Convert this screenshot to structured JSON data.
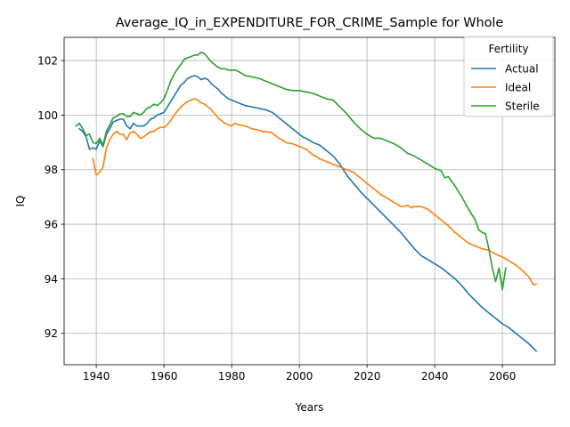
{
  "chart_data": {
    "type": "line",
    "title": "Average_IQ_in_EXPENDITURE_FOR_CRIME_Sample for Whole",
    "xlabel": "Years",
    "ylabel": "IQ",
    "xlim": [
      1930.5,
      2075.5
    ],
    "ylim": [
      90.85,
      102.85
    ],
    "xticks": [
      1940,
      1960,
      1980,
      2000,
      2020,
      2040,
      2060
    ],
    "yticks": [
      92,
      94,
      96,
      98,
      100,
      102
    ],
    "grid": true,
    "legend": {
      "title": "Fertility",
      "position": "top-right"
    },
    "series": [
      {
        "name": "Actual",
        "color": "#1f77b4",
        "points": [
          [
            1935,
            99.5
          ],
          [
            1936,
            99.4
          ],
          [
            1937,
            99.2
          ],
          [
            1938,
            98.75
          ],
          [
            1939,
            98.8
          ],
          [
            1940,
            98.75
          ],
          [
            1941,
            99.05
          ],
          [
            1942,
            98.85
          ],
          [
            1943,
            99.3
          ],
          [
            1944,
            99.5
          ],
          [
            1945,
            99.75
          ],
          [
            1946,
            99.8
          ],
          [
            1947,
            99.85
          ],
          [
            1948,
            99.85
          ],
          [
            1949,
            99.6
          ],
          [
            1950,
            99.5
          ],
          [
            1951,
            99.7
          ],
          [
            1952,
            99.6
          ],
          [
            1953,
            99.6
          ],
          [
            1954,
            99.6
          ],
          [
            1955,
            99.7
          ],
          [
            1956,
            99.85
          ],
          [
            1957,
            99.9
          ],
          [
            1958,
            100.0
          ],
          [
            1959,
            100.05
          ],
          [
            1960,
            100.1
          ],
          [
            1961,
            100.3
          ],
          [
            1962,
            100.5
          ],
          [
            1963,
            100.7
          ],
          [
            1964,
            100.9
          ],
          [
            1965,
            101.1
          ],
          [
            1966,
            101.2
          ],
          [
            1967,
            101.35
          ],
          [
            1968,
            101.4
          ],
          [
            1969,
            101.45
          ],
          [
            1970,
            101.4
          ],
          [
            1971,
            101.3
          ],
          [
            1972,
            101.35
          ],
          [
            1973,
            101.3
          ],
          [
            1974,
            101.15
          ],
          [
            1975,
            101.05
          ],
          [
            1976,
            100.95
          ],
          [
            1977,
            100.8
          ],
          [
            1978,
            100.7
          ],
          [
            1979,
            100.6
          ],
          [
            1980,
            100.55
          ],
          [
            1981,
            100.5
          ],
          [
            1982,
            100.45
          ],
          [
            1984,
            100.35
          ],
          [
            1986,
            100.3
          ],
          [
            1988,
            100.25
          ],
          [
            1990,
            100.2
          ],
          [
            1992,
            100.1
          ],
          [
            1994,
            99.9
          ],
          [
            1996,
            99.7
          ],
          [
            1998,
            99.5
          ],
          [
            2000,
            99.3
          ],
          [
            2001,
            99.2
          ],
          [
            2002,
            99.15
          ],
          [
            2004,
            99.0
          ],
          [
            2006,
            98.9
          ],
          [
            2008,
            98.7
          ],
          [
            2010,
            98.5
          ],
          [
            2012,
            98.2
          ],
          [
            2014,
            97.8
          ],
          [
            2016,
            97.5
          ],
          [
            2018,
            97.2
          ],
          [
            2020,
            96.95
          ],
          [
            2022,
            96.7
          ],
          [
            2024,
            96.45
          ],
          [
            2026,
            96.2
          ],
          [
            2028,
            95.95
          ],
          [
            2030,
            95.7
          ],
          [
            2032,
            95.4
          ],
          [
            2034,
            95.1
          ],
          [
            2036,
            94.85
          ],
          [
            2038,
            94.7
          ],
          [
            2040,
            94.55
          ],
          [
            2042,
            94.4
          ],
          [
            2044,
            94.2
          ],
          [
            2046,
            94.0
          ],
          [
            2048,
            93.75
          ],
          [
            2050,
            93.45
          ],
          [
            2052,
            93.2
          ],
          [
            2054,
            92.95
          ],
          [
            2056,
            92.75
          ],
          [
            2058,
            92.55
          ],
          [
            2060,
            92.35
          ],
          [
            2062,
            92.2
          ],
          [
            2064,
            92.0
          ],
          [
            2066,
            91.8
          ],
          [
            2068,
            91.6
          ],
          [
            2070,
            91.35
          ]
        ]
      },
      {
        "name": "Ideal",
        "color": "#ff7f0e",
        "points": [
          [
            1939,
            98.4
          ],
          [
            1940,
            97.8
          ],
          [
            1941,
            97.9
          ],
          [
            1942,
            98.1
          ],
          [
            1943,
            98.8
          ],
          [
            1944,
            99.1
          ],
          [
            1945,
            99.3
          ],
          [
            1946,
            99.4
          ],
          [
            1947,
            99.3
          ],
          [
            1948,
            99.3
          ],
          [
            1949,
            99.1
          ],
          [
            1950,
            99.35
          ],
          [
            1951,
            99.4
          ],
          [
            1952,
            99.3
          ],
          [
            1953,
            99.15
          ],
          [
            1954,
            99.2
          ],
          [
            1955,
            99.3
          ],
          [
            1956,
            99.4
          ],
          [
            1957,
            99.4
          ],
          [
            1958,
            99.5
          ],
          [
            1959,
            99.55
          ],
          [
            1960,
            99.55
          ],
          [
            1961,
            99.65
          ],
          [
            1962,
            99.8
          ],
          [
            1963,
            100.0
          ],
          [
            1964,
            100.15
          ],
          [
            1965,
            100.3
          ],
          [
            1966,
            100.4
          ],
          [
            1967,
            100.5
          ],
          [
            1968,
            100.55
          ],
          [
            1969,
            100.6
          ],
          [
            1970,
            100.55
          ],
          [
            1971,
            100.45
          ],
          [
            1972,
            100.4
          ],
          [
            1973,
            100.3
          ],
          [
            1974,
            100.2
          ],
          [
            1975,
            100.05
          ],
          [
            1976,
            99.9
          ],
          [
            1977,
            99.8
          ],
          [
            1978,
            99.7
          ],
          [
            1979,
            99.65
          ],
          [
            1980,
            99.6
          ],
          [
            1981,
            99.7
          ],
          [
            1982,
            99.65
          ],
          [
            1984,
            99.6
          ],
          [
            1986,
            99.5
          ],
          [
            1988,
            99.45
          ],
          [
            1989,
            99.4
          ],
          [
            1990,
            99.4
          ],
          [
            1992,
            99.35
          ],
          [
            1994,
            99.15
          ],
          [
            1996,
            99.0
          ],
          [
            1998,
            98.95
          ],
          [
            2000,
            98.85
          ],
          [
            2002,
            98.75
          ],
          [
            2004,
            98.55
          ],
          [
            2006,
            98.4
          ],
          [
            2008,
            98.3
          ],
          [
            2010,
            98.2
          ],
          [
            2012,
            98.1
          ],
          [
            2014,
            98.0
          ],
          [
            2016,
            97.9
          ],
          [
            2018,
            97.7
          ],
          [
            2020,
            97.5
          ],
          [
            2022,
            97.3
          ],
          [
            2024,
            97.1
          ],
          [
            2026,
            96.95
          ],
          [
            2028,
            96.8
          ],
          [
            2030,
            96.65
          ],
          [
            2031,
            96.65
          ],
          [
            2032,
            96.7
          ],
          [
            2033,
            96.6
          ],
          [
            2034,
            96.65
          ],
          [
            2036,
            96.65
          ],
          [
            2038,
            96.55
          ],
          [
            2040,
            96.35
          ],
          [
            2042,
            96.15
          ],
          [
            2044,
            95.95
          ],
          [
            2046,
            95.7
          ],
          [
            2048,
            95.5
          ],
          [
            2050,
            95.3
          ],
          [
            2052,
            95.2
          ],
          [
            2054,
            95.1
          ],
          [
            2056,
            95.05
          ],
          [
            2058,
            94.9
          ],
          [
            2060,
            94.8
          ],
          [
            2062,
            94.65
          ],
          [
            2064,
            94.5
          ],
          [
            2066,
            94.3
          ],
          [
            2068,
            94.05
          ],
          [
            2069,
            93.8
          ],
          [
            2070,
            93.8
          ]
        ]
      },
      {
        "name": "Sterile",
        "color": "#2ca02c",
        "points": [
          [
            1934,
            99.6
          ],
          [
            1935,
            99.7
          ],
          [
            1936,
            99.5
          ],
          [
            1937,
            99.25
          ],
          [
            1938,
            99.3
          ],
          [
            1939,
            99.0
          ],
          [
            1940,
            98.95
          ],
          [
            1941,
            99.15
          ],
          [
            1942,
            98.9
          ],
          [
            1943,
            99.4
          ],
          [
            1944,
            99.65
          ],
          [
            1945,
            99.9
          ],
          [
            1946,
            99.95
          ],
          [
            1947,
            100.05
          ],
          [
            1948,
            100.05
          ],
          [
            1949,
            99.95
          ],
          [
            1950,
            99.95
          ],
          [
            1951,
            100.1
          ],
          [
            1952,
            100.05
          ],
          [
            1953,
            100.0
          ],
          [
            1954,
            100.1
          ],
          [
            1955,
            100.25
          ],
          [
            1956,
            100.3
          ],
          [
            1957,
            100.4
          ],
          [
            1958,
            100.35
          ],
          [
            1959,
            100.45
          ],
          [
            1960,
            100.6
          ],
          [
            1961,
            100.9
          ],
          [
            1962,
            101.25
          ],
          [
            1963,
            101.5
          ],
          [
            1964,
            101.7
          ],
          [
            1965,
            101.85
          ],
          [
            1966,
            102.05
          ],
          [
            1967,
            102.1
          ],
          [
            1968,
            102.15
          ],
          [
            1969,
            102.2
          ],
          [
            1970,
            102.2
          ],
          [
            1971,
            102.3
          ],
          [
            1972,
            102.25
          ],
          [
            1973,
            102.1
          ],
          [
            1974,
            101.95
          ],
          [
            1975,
            101.85
          ],
          [
            1976,
            101.75
          ],
          [
            1977,
            101.7
          ],
          [
            1978,
            101.7
          ],
          [
            1979,
            101.65
          ],
          [
            1980,
            101.65
          ],
          [
            1981,
            101.65
          ],
          [
            1982,
            101.6
          ],
          [
            1984,
            101.45
          ],
          [
            1986,
            101.4
          ],
          [
            1988,
            101.35
          ],
          [
            1990,
            101.25
          ],
          [
            1992,
            101.15
          ],
          [
            1994,
            101.05
          ],
          [
            1996,
            100.95
          ],
          [
            1998,
            100.9
          ],
          [
            2000,
            100.9
          ],
          [
            2002,
            100.85
          ],
          [
            2004,
            100.8
          ],
          [
            2006,
            100.7
          ],
          [
            2008,
            100.6
          ],
          [
            2010,
            100.55
          ],
          [
            2012,
            100.3
          ],
          [
            2014,
            100.05
          ],
          [
            2016,
            99.75
          ],
          [
            2018,
            99.5
          ],
          [
            2020,
            99.3
          ],
          [
            2022,
            99.15
          ],
          [
            2024,
            99.15
          ],
          [
            2026,
            99.05
          ],
          [
            2028,
            98.95
          ],
          [
            2030,
            98.8
          ],
          [
            2032,
            98.6
          ],
          [
            2034,
            98.5
          ],
          [
            2036,
            98.35
          ],
          [
            2038,
            98.2
          ],
          [
            2040,
            98.05
          ],
          [
            2042,
            97.95
          ],
          [
            2043,
            97.7
          ],
          [
            2044,
            97.75
          ],
          [
            2046,
            97.4
          ],
          [
            2048,
            97.0
          ],
          [
            2050,
            96.55
          ],
          [
            2052,
            96.15
          ],
          [
            2053,
            95.8
          ],
          [
            2054,
            95.7
          ],
          [
            2055,
            95.65
          ],
          [
            2056,
            95.1
          ],
          [
            2057,
            94.4
          ],
          [
            2058,
            93.9
          ],
          [
            2059,
            94.4
          ],
          [
            2060,
            93.6
          ],
          [
            2061,
            94.4
          ]
        ]
      }
    ]
  }
}
